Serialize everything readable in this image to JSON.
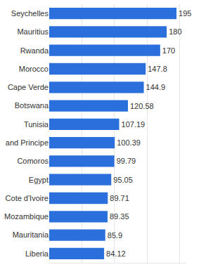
{
  "chart_data": {
    "type": "bar",
    "orientation": "horizontal",
    "categories": [
      "Seychelles",
      "Mauritius",
      "Rwanda",
      "Morocco",
      "Cape Verde",
      "Botswana",
      "Tunisia",
      "and Principe",
      "Comoros",
      "Egypt",
      "Cote d'Ivoire",
      "Mozambique",
      "Mauritania",
      "Liberia"
    ],
    "values": [
      195,
      180,
      170,
      147.8,
      144.9,
      120.58,
      107.19,
      100.39,
      99.79,
      95.05,
      89.71,
      89.35,
      85.9,
      84.12
    ],
    "color": "#2a6fdb",
    "xlim": [
      0,
      210
    ],
    "xticks": [
      0,
      50,
      100,
      150,
      200
    ],
    "grid": true,
    "data_labels": true,
    "tick_labels": "y"
  }
}
